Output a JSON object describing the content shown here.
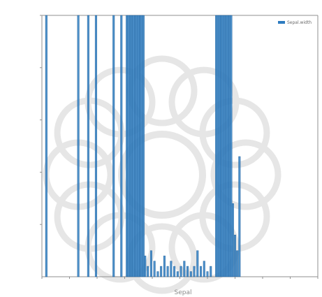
{
  "chart_data": {
    "type": "bar",
    "title": "",
    "xlabel": "Sepal",
    "ylabel": "",
    "xlim": [
      -25,
      25
    ],
    "ylim": [
      0,
      50
    ],
    "grid": false,
    "legend_position": "top-right",
    "series": [
      {
        "name": "Sepal.width",
        "color": "#2e7cc0",
        "x": [
          -24.2,
          -18.4,
          -16.6,
          -15.2,
          -12.0,
          -10.6,
          -9.6,
          -9.3,
          -9.0,
          -8.7,
          -8.4,
          -8.1,
          -7.8,
          -7.5,
          -7.2,
          -6.9,
          -6.6,
          -6.3,
          -5.8,
          -5.2,
          -4.6,
          -4.0,
          -3.4,
          -2.8,
          -2.2,
          -1.6,
          -1.0,
          -0.4,
          0.2,
          0.8,
          1.4,
          2.0,
          2.6,
          3.2,
          3.8,
          4.4,
          5.0,
          5.6,
          6.6,
          6.9,
          7.2,
          7.5,
          7.8,
          8.1,
          8.4,
          8.7,
          9.0,
          9.3,
          9.6,
          10.0,
          10.4,
          10.8
        ],
        "values": [
          50,
          50,
          50,
          50,
          50,
          50,
          50,
          50,
          50,
          50,
          50,
          50,
          50,
          50,
          50,
          50,
          50,
          4,
          2,
          5,
          3,
          1,
          2,
          4,
          2,
          3,
          2,
          1,
          2,
          3,
          2,
          1,
          2,
          5,
          2,
          3,
          1,
          2,
          50,
          50,
          50,
          50,
          50,
          50,
          50,
          50,
          50,
          50,
          14,
          8,
          5,
          23
        ]
      }
    ]
  }
}
